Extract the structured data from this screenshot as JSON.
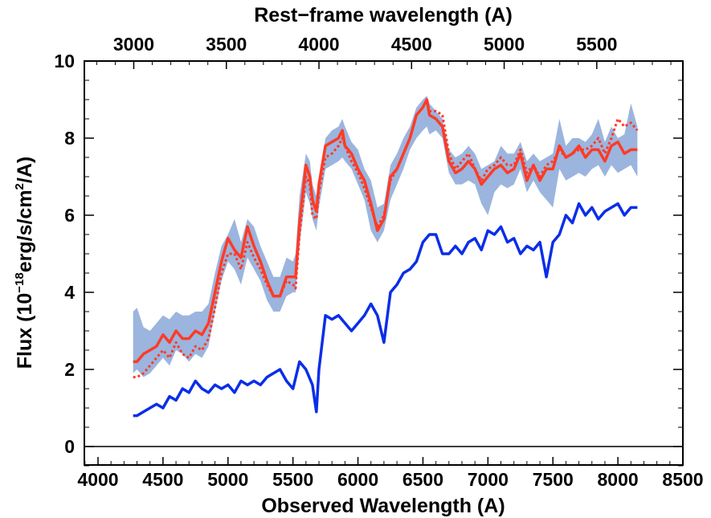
{
  "chart_data": {
    "type": "line",
    "title": "",
    "xlabel": "Observed Wavelength (A)",
    "xlabel_top": "Rest−frame wavelength (A)",
    "ylabel": "Flux (10",
    "ylabel_exp": "−18",
    "ylabel_mid": "erg/s/cm",
    "ylabel_exp2": "2",
    "ylabel_end": "/A)",
    "xlim": [
      3900,
      8550
    ],
    "ylim": [
      -0.5,
      10
    ],
    "xticks": [
      4000,
      4500,
      5000,
      5500,
      6000,
      6500,
      7000,
      7500,
      8000,
      8500
    ],
    "yticks": [
      0,
      2,
      4,
      6,
      8,
      10
    ],
    "top_ticks": [
      3000,
      3500,
      4000,
      4500,
      5000,
      5500
    ],
    "redshift": 0.425,
    "zero_line": 0,
    "legend": "none",
    "grid": false,
    "series": [
      {
        "style": "band",
        "color": "#8aa8d8",
        "x": [
          4270,
          4300,
          4350,
          4400,
          4450,
          4500,
          4550,
          4600,
          4650,
          4700,
          4750,
          4800,
          4850,
          4900,
          4950,
          5000,
          5050,
          5100,
          5150,
          5200,
          5250,
          5300,
          5350,
          5400,
          5450,
          5500,
          5520,
          5550,
          5600,
          5630,
          5650,
          5680,
          5700,
          5750,
          5800,
          5850,
          5880,
          5900,
          5950,
          6000,
          6050,
          6100,
          6150,
          6200,
          6250,
          6300,
          6350,
          6400,
          6450,
          6500,
          6530,
          6550,
          6600,
          6650,
          6700,
          6750,
          6800,
          6850,
          6900,
          6950,
          7000,
          7050,
          7100,
          7150,
          7200,
          7250,
          7300,
          7350,
          7400,
          7450,
          7500,
          7550,
          7600,
          7650,
          7700,
          7750,
          7800,
          7850,
          7900,
          7950,
          8000,
          8050,
          8100,
          8150
        ],
        "upper": [
          3.5,
          3.6,
          3.1,
          3.0,
          3.2,
          3.4,
          3.3,
          3.5,
          3.4,
          3.4,
          3.5,
          3.5,
          3.7,
          4.5,
          5.2,
          5.5,
          5.9,
          5.3,
          5.9,
          5.7,
          5.2,
          4.8,
          4.4,
          4.4,
          4.9,
          4.8,
          5.0,
          6.5,
          7.6,
          7.4,
          6.8,
          6.5,
          7.0,
          8.0,
          8.2,
          8.3,
          8.5,
          8.3,
          7.9,
          7.7,
          7.2,
          6.9,
          6.2,
          6.3,
          7.3,
          7.6,
          8.0,
          8.3,
          8.8,
          9.0,
          9.1,
          8.9,
          8.7,
          8.5,
          7.7,
          7.5,
          7.6,
          7.8,
          7.6,
          7.2,
          7.3,
          7.4,
          7.8,
          7.6,
          7.6,
          7.9,
          7.4,
          7.6,
          7.4,
          7.5,
          7.6,
          8.5,
          7.8,
          8.0,
          8.0,
          7.9,
          8.1,
          8.5,
          7.9,
          8.3,
          8.0,
          8.1,
          8.9,
          8.3
        ],
        "lower": [
          1.9,
          2.0,
          1.8,
          1.9,
          2.1,
          2.3,
          2.1,
          2.5,
          2.4,
          2.2,
          2.4,
          2.3,
          2.6,
          3.5,
          4.3,
          4.8,
          4.6,
          4.2,
          4.9,
          4.6,
          4.3,
          3.8,
          3.5,
          3.5,
          3.9,
          4.0,
          4.0,
          5.2,
          6.6,
          6.3,
          5.9,
          5.6,
          6.2,
          7.2,
          7.3,
          7.4,
          7.5,
          7.4,
          7.2,
          6.8,
          6.4,
          5.6,
          5.3,
          5.6,
          6.4,
          6.8,
          7.2,
          7.7,
          8.0,
          8.2,
          8.3,
          8.1,
          8.2,
          8.0,
          7.1,
          6.8,
          6.8,
          6.9,
          6.8,
          6.3,
          6.0,
          6.6,
          6.8,
          6.7,
          6.8,
          7.2,
          6.6,
          6.9,
          6.6,
          6.4,
          6.2,
          7.2,
          6.9,
          7.0,
          7.1,
          7.0,
          7.2,
          7.3,
          7.0,
          7.3,
          7.1,
          7.2,
          7.3,
          7.0
        ]
      },
      {
        "style": "dotted",
        "color": "#ff3b26",
        "x": [
          4270,
          4300,
          4350,
          4400,
          4450,
          4500,
          4550,
          4600,
          4650,
          4700,
          4750,
          4800,
          4850,
          4900,
          4950,
          5000,
          5050,
          5100,
          5150,
          5200,
          5250,
          5300,
          5350,
          5400,
          5450,
          5500,
          5520,
          5550,
          5600,
          5630,
          5650,
          5680,
          5700,
          5750,
          5800,
          5850,
          5880,
          5900,
          5950,
          6000,
          6050,
          6100,
          6150,
          6200,
          6250,
          6300,
          6350,
          6400,
          6450,
          6500,
          6530,
          6550,
          6600,
          6650,
          6700,
          6750,
          6800,
          6850,
          6900,
          6950,
          7000,
          7050,
          7100,
          7150,
          7200,
          7250,
          7300,
          7350,
          7400,
          7450,
          7500,
          7550,
          7600,
          7650,
          7700,
          7750,
          7800,
          7850,
          7900,
          7950,
          8000,
          8050,
          8100,
          8150
        ],
        "y": [
          1.8,
          1.8,
          1.9,
          2.1,
          2.3,
          2.5,
          2.3,
          2.7,
          2.4,
          2.3,
          2.6,
          2.5,
          2.8,
          3.6,
          4.5,
          5.0,
          5.0,
          4.6,
          5.3,
          4.9,
          4.6,
          4.2,
          3.9,
          3.9,
          4.3,
          4.2,
          4.1,
          5.5,
          7.0,
          6.8,
          6.0,
          5.9,
          6.6,
          7.5,
          7.6,
          7.8,
          8.0,
          7.8,
          7.4,
          7.1,
          6.7,
          6.2,
          5.7,
          6.0,
          6.9,
          7.2,
          7.6,
          8.0,
          8.6,
          8.8,
          9.0,
          8.7,
          8.7,
          8.6,
          7.6,
          7.2,
          7.4,
          7.6,
          7.2,
          6.9,
          7.2,
          7.3,
          7.5,
          7.3,
          7.3,
          7.7,
          7.1,
          7.3,
          7.0,
          7.3,
          7.4,
          7.7,
          7.5,
          7.6,
          7.7,
          7.7,
          7.8,
          8.0,
          7.6,
          8.0,
          8.5,
          8.3,
          8.4,
          8.2
        ]
      },
      {
        "style": "solid-thick",
        "color": "#ff3b26",
        "x": [
          4270,
          4300,
          4350,
          4400,
          4450,
          4500,
          4550,
          4600,
          4650,
          4700,
          4750,
          4800,
          4850,
          4900,
          4950,
          5000,
          5050,
          5100,
          5150,
          5200,
          5250,
          5300,
          5350,
          5400,
          5450,
          5500,
          5520,
          5550,
          5600,
          5630,
          5650,
          5680,
          5700,
          5750,
          5800,
          5850,
          5880,
          5900,
          5950,
          6000,
          6050,
          6100,
          6150,
          6200,
          6250,
          6300,
          6350,
          6400,
          6450,
          6500,
          6530,
          6550,
          6600,
          6650,
          6700,
          6750,
          6800,
          6850,
          6900,
          6950,
          7000,
          7050,
          7100,
          7150,
          7200,
          7250,
          7300,
          7350,
          7400,
          7450,
          7500,
          7550,
          7600,
          7650,
          7700,
          7750,
          7800,
          7850,
          7900,
          7950,
          8000,
          8050,
          8100,
          8150
        ],
        "y": [
          2.2,
          2.2,
          2.4,
          2.5,
          2.6,
          2.9,
          2.7,
          3.0,
          2.8,
          2.8,
          3.0,
          2.9,
          3.2,
          4.0,
          4.8,
          5.4,
          5.1,
          4.9,
          5.7,
          5.2,
          4.8,
          4.3,
          3.9,
          3.9,
          4.4,
          4.4,
          4.4,
          5.8,
          7.3,
          7.0,
          6.4,
          6.1,
          6.8,
          7.8,
          7.9,
          8.0,
          8.2,
          7.8,
          7.6,
          7.2,
          6.9,
          6.3,
          5.6,
          5.9,
          7.0,
          7.2,
          7.6,
          8.0,
          8.6,
          8.8,
          9.0,
          8.6,
          8.5,
          8.3,
          7.4,
          7.1,
          7.2,
          7.4,
          7.2,
          6.8,
          7.0,
          7.2,
          7.3,
          7.1,
          7.2,
          7.6,
          6.9,
          7.3,
          6.9,
          7.2,
          7.2,
          7.8,
          7.5,
          7.6,
          7.8,
          7.5,
          7.7,
          7.7,
          7.4,
          7.8,
          7.9,
          7.6,
          7.7,
          7.7
        ]
      },
      {
        "style": "solid-thick",
        "color": "#0a2ee8",
        "x": [
          4270,
          4300,
          4350,
          4400,
          4450,
          4500,
          4550,
          4600,
          4650,
          4700,
          4750,
          4800,
          4850,
          4900,
          4950,
          5000,
          5050,
          5100,
          5150,
          5200,
          5250,
          5300,
          5350,
          5400,
          5450,
          5500,
          5550,
          5600,
          5650,
          5680,
          5700,
          5750,
          5800,
          5850,
          5900,
          5950,
          6000,
          6050,
          6100,
          6150,
          6200,
          6250,
          6300,
          6350,
          6400,
          6450,
          6500,
          6550,
          6600,
          6650,
          6700,
          6750,
          6800,
          6850,
          6900,
          6950,
          7000,
          7050,
          7100,
          7150,
          7200,
          7250,
          7300,
          7350,
          7400,
          7450,
          7500,
          7550,
          7600,
          7650,
          7700,
          7750,
          7800,
          7850,
          7900,
          7950,
          8000,
          8050,
          8100,
          8150
        ],
        "y": [
          0.8,
          0.8,
          0.9,
          1.0,
          1.1,
          1.0,
          1.3,
          1.2,
          1.5,
          1.4,
          1.7,
          1.5,
          1.4,
          1.6,
          1.5,
          1.6,
          1.4,
          1.7,
          1.6,
          1.7,
          1.6,
          1.8,
          1.9,
          2.0,
          1.7,
          1.5,
          2.2,
          2.0,
          1.6,
          0.9,
          2.0,
          3.4,
          3.3,
          3.4,
          3.2,
          3.0,
          3.2,
          3.4,
          3.7,
          3.4,
          2.7,
          4.0,
          4.2,
          4.5,
          4.6,
          4.8,
          5.3,
          5.5,
          5.5,
          5.0,
          5.0,
          5.2,
          5.0,
          5.3,
          5.4,
          5.1,
          5.6,
          5.5,
          5.7,
          5.3,
          5.4,
          5.0,
          5.2,
          5.1,
          5.3,
          4.4,
          5.3,
          5.5,
          6.0,
          5.8,
          6.3,
          6.0,
          6.2,
          5.9,
          6.1,
          6.2,
          6.3,
          6.0,
          6.2,
          6.2
        ]
      }
    ]
  }
}
